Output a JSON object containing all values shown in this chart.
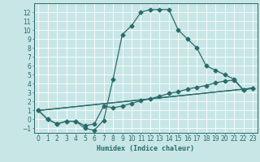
{
  "xlabel": "Humidex (Indice chaleur)",
  "xlim": [
    -0.5,
    23.5
  ],
  "ylim": [
    -1.5,
    13.0
  ],
  "xticks": [
    0,
    1,
    2,
    3,
    4,
    5,
    6,
    7,
    8,
    9,
    10,
    11,
    12,
    13,
    14,
    15,
    16,
    17,
    18,
    19,
    20,
    21,
    22,
    23
  ],
  "yticks": [
    -1,
    0,
    1,
    2,
    3,
    4,
    5,
    6,
    7,
    8,
    9,
    10,
    11,
    12
  ],
  "bg_color": "#c8e6e6",
  "grid_color": "#ffffff",
  "line_color": "#2a6b6b",
  "line1_x": [
    0,
    1,
    2,
    3,
    4,
    5,
    6,
    7,
    8,
    9,
    10,
    11,
    12,
    13,
    14,
    15,
    16,
    17,
    18,
    19,
    20,
    21,
    22,
    23
  ],
  "line1_y": [
    1.0,
    0.0,
    -0.5,
    -0.2,
    -0.2,
    -1.0,
    -1.2,
    -0.1,
    4.5,
    9.5,
    10.5,
    12.0,
    12.3,
    12.3,
    12.3,
    10.0,
    9.0,
    8.0,
    6.0,
    5.5,
    5.0,
    4.5,
    3.3,
    3.5
  ],
  "line2_x": [
    0,
    1,
    2,
    3,
    4,
    5,
    6,
    7,
    8,
    9,
    10,
    11,
    12,
    13,
    14,
    15,
    16,
    17,
    18,
    19,
    20,
    21,
    22,
    23
  ],
  "line2_y": [
    1.0,
    0.0,
    -0.5,
    -0.2,
    -0.2,
    -0.7,
    -0.5,
    1.5,
    1.3,
    1.5,
    1.8,
    2.1,
    2.3,
    2.6,
    2.9,
    3.1,
    3.4,
    3.6,
    3.8,
    4.1,
    4.3,
    4.4,
    3.3,
    3.5
  ],
  "line3_x": [
    0,
    23
  ],
  "line3_y": [
    1.0,
    3.5
  ],
  "line4_x": [
    0,
    23
  ],
  "line4_y": [
    1.0,
    3.5
  ]
}
